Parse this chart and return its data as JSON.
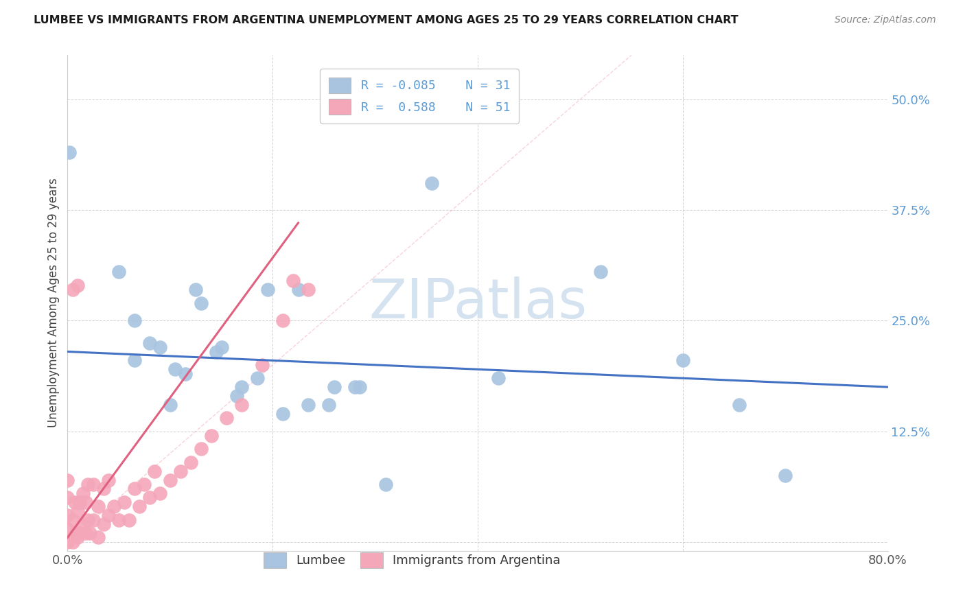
{
  "title": "LUMBEE VS IMMIGRANTS FROM ARGENTINA UNEMPLOYMENT AMONG AGES 25 TO 29 YEARS CORRELATION CHART",
  "source": "Source: ZipAtlas.com",
  "ylabel": "Unemployment Among Ages 25 to 29 years",
  "xlim": [
    0.0,
    0.8
  ],
  "ylim": [
    -0.01,
    0.55
  ],
  "ytick_vals": [
    0.0,
    0.125,
    0.25,
    0.375,
    0.5
  ],
  "ytick_labels": [
    "",
    "12.5%",
    "25.0%",
    "37.5%",
    "50.0%"
  ],
  "xtick_vals": [
    0.0,
    0.2,
    0.4,
    0.6,
    0.8
  ],
  "xtick_labels": [
    "0.0%",
    "",
    "",
    "",
    "80.0%"
  ],
  "lumbee_R": -0.085,
  "lumbee_N": 31,
  "argentina_R": 0.588,
  "argentina_N": 51,
  "lumbee_dot_color": "#a8c4e0",
  "argentina_dot_color": "#f4a7b9",
  "lumbee_line_color": "#4472c4",
  "argentina_line_color": "#e06080",
  "ref_line_color": "#f4a7b9",
  "tick_color": "#5b9bd5",
  "watermark_color": "#d5e3f0",
  "background_color": "#ffffff",
  "lumbee_x": [
    0.002,
    0.05,
    0.065,
    0.08,
    0.1,
    0.115,
    0.13,
    0.15,
    0.17,
    0.185,
    0.21,
    0.235,
    0.26,
    0.285,
    0.31,
    0.355,
    0.42,
    0.52,
    0.6,
    0.655,
    0.7,
    0.065,
    0.09,
    0.105,
    0.125,
    0.145,
    0.165,
    0.195,
    0.225,
    0.255,
    0.28
  ],
  "lumbee_y": [
    0.44,
    0.305,
    0.205,
    0.225,
    0.155,
    0.19,
    0.27,
    0.22,
    0.175,
    0.185,
    0.145,
    0.155,
    0.175,
    0.175,
    0.065,
    0.405,
    0.185,
    0.305,
    0.205,
    0.155,
    0.075,
    0.25,
    0.22,
    0.195,
    0.285,
    0.215,
    0.165,
    0.285,
    0.285,
    0.155,
    0.175
  ],
  "argentina_x": [
    0.0,
    0.0,
    0.0,
    0.0,
    0.0,
    0.005,
    0.005,
    0.007,
    0.007,
    0.01,
    0.01,
    0.012,
    0.012,
    0.015,
    0.015,
    0.018,
    0.018,
    0.02,
    0.02,
    0.022,
    0.025,
    0.025,
    0.03,
    0.03,
    0.035,
    0.035,
    0.04,
    0.04,
    0.045,
    0.05,
    0.055,
    0.06,
    0.065,
    0.07,
    0.075,
    0.08,
    0.085,
    0.09,
    0.1,
    0.11,
    0.12,
    0.13,
    0.14,
    0.155,
    0.17,
    0.19,
    0.21,
    0.22,
    0.235,
    0.005,
    0.01
  ],
  "argentina_y": [
    0.0,
    0.015,
    0.03,
    0.05,
    0.07,
    0.0,
    0.025,
    0.01,
    0.045,
    0.005,
    0.035,
    0.01,
    0.045,
    0.02,
    0.055,
    0.01,
    0.045,
    0.025,
    0.065,
    0.01,
    0.025,
    0.065,
    0.005,
    0.04,
    0.02,
    0.06,
    0.03,
    0.07,
    0.04,
    0.025,
    0.045,
    0.025,
    0.06,
    0.04,
    0.065,
    0.05,
    0.08,
    0.055,
    0.07,
    0.08,
    0.09,
    0.105,
    0.12,
    0.14,
    0.155,
    0.2,
    0.25,
    0.295,
    0.285,
    0.285,
    0.29
  ]
}
